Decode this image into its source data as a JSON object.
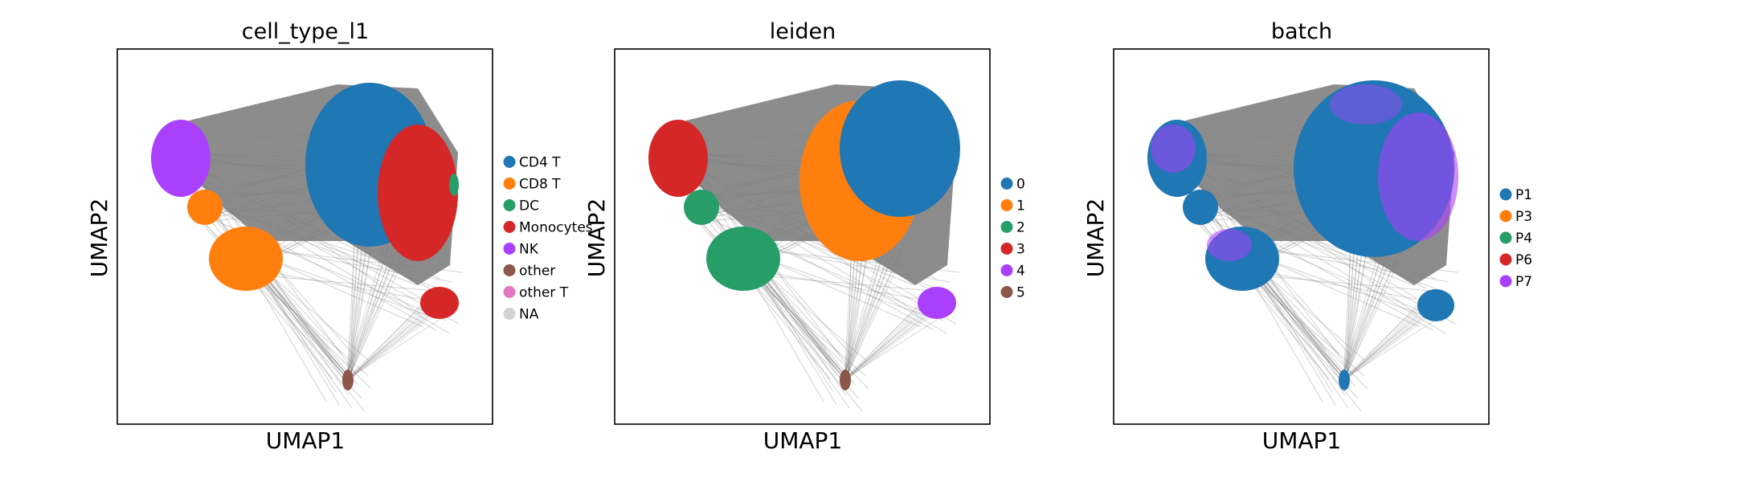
{
  "chart_data": [
    {
      "type": "scatter",
      "title": "cell_type_l1",
      "xlabel": "UMAP1",
      "ylabel": "UMAP2",
      "grid": false,
      "legend_placement": "right",
      "legend": [
        {
          "label": "CD4 T",
          "color": "#1f77b4"
        },
        {
          "label": "CD8 T",
          "color": "#ff7f0e"
        },
        {
          "label": "DC",
          "color": "#279e68"
        },
        {
          "label": "Monocytes",
          "color": "#d62728"
        },
        {
          "label": "NK",
          "color": "#aa40fc"
        },
        {
          "label": "other",
          "color": "#8c564b"
        },
        {
          "label": "other T",
          "color": "#e377c2"
        },
        {
          "label": "NA",
          "color": "#d3d3d3"
        }
      ]
    },
    {
      "type": "scatter",
      "title": "leiden",
      "xlabel": "UMAP1",
      "ylabel": "UMAP2",
      "grid": false,
      "legend_placement": "right",
      "legend": [
        {
          "label": "0",
          "color": "#1f77b4"
        },
        {
          "label": "1",
          "color": "#ff7f0e"
        },
        {
          "label": "2",
          "color": "#279e68"
        },
        {
          "label": "3",
          "color": "#d62728"
        },
        {
          "label": "4",
          "color": "#aa40fc"
        },
        {
          "label": "5",
          "color": "#8c564b"
        }
      ]
    },
    {
      "type": "scatter",
      "title": "batch",
      "xlabel": "UMAP1",
      "ylabel": "UMAP2",
      "grid": false,
      "legend_placement": "right",
      "legend": [
        {
          "label": "P1",
          "color": "#1f77b4"
        },
        {
          "label": "P3",
          "color": "#ff7f0e"
        },
        {
          "label": "P4",
          "color": "#279e68"
        },
        {
          "label": "P6",
          "color": "#d62728"
        },
        {
          "label": "P7",
          "color": "#aa40fc"
        }
      ]
    }
  ],
  "colors": {
    "edges": "#808080",
    "frame": "#000000",
    "background": "#ffffff"
  }
}
